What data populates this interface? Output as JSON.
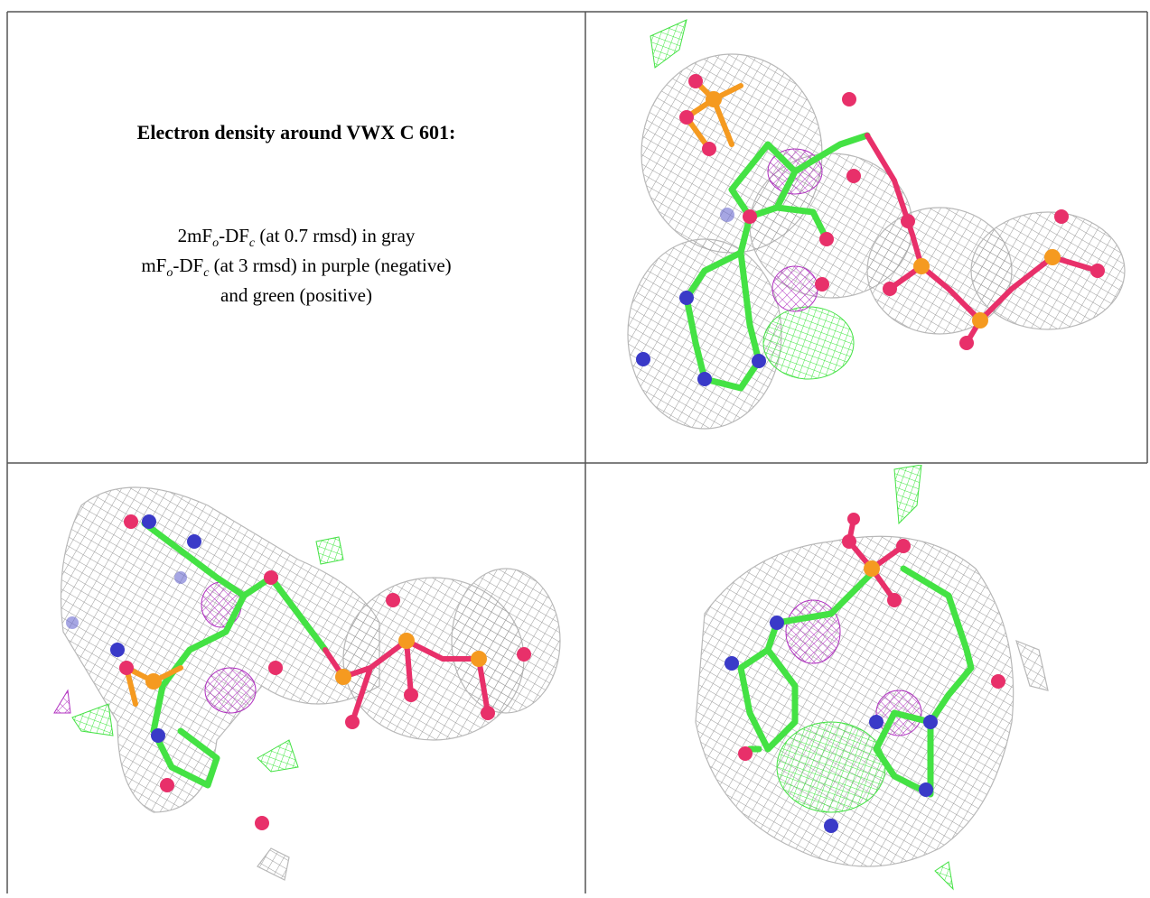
{
  "title": "Electron density around VWX C 601:",
  "legend_lines": [
    [
      "2mF",
      "o",
      "-DF",
      "c",
      " (at 0.7 rmsd) in gray"
    ],
    [
      "mF",
      "o",
      "-DF",
      "c",
      " (at 3 rmsd) in purple (negative)"
    ],
    [
      "and green (positive)"
    ]
  ]
}
